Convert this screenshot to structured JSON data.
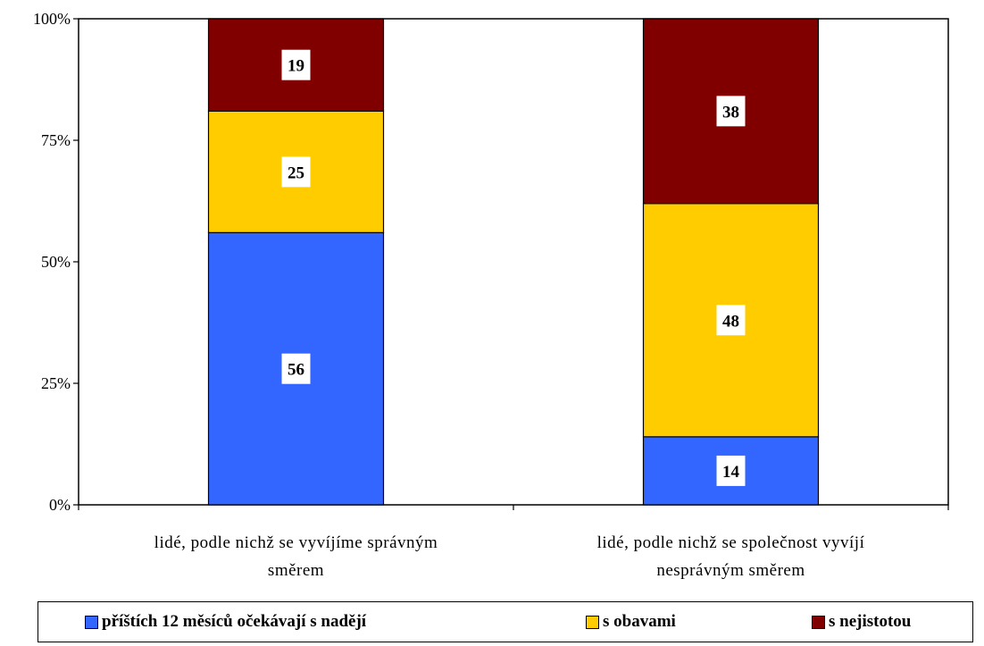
{
  "chart_data": {
    "type": "bar",
    "stacked": true,
    "percent_stacked": true,
    "categories": [
      [
        "lidé, podle nichž se vyvíjíme správným",
        "směrem"
      ],
      [
        "lidé, podle nichž se společnost vyvíjí",
        "nesprávným směrem"
      ]
    ],
    "series": [
      {
        "name": "příštích 12 měsíců očekávají s nadějí",
        "values": [
          56,
          14
        ],
        "color": "#3366FF"
      },
      {
        "name": "s obavami",
        "values": [
          25,
          48
        ],
        "color": "#FFCC00"
      },
      {
        "name": "s nejistotou",
        "values": [
          19,
          38
        ],
        "color": "#800000"
      }
    ],
    "yticks": [
      "0%",
      "25%",
      "50%",
      "75%",
      "100%"
    ],
    "ylim": [
      0,
      100
    ],
    "legend_position": "bottom",
    "grid": false
  }
}
